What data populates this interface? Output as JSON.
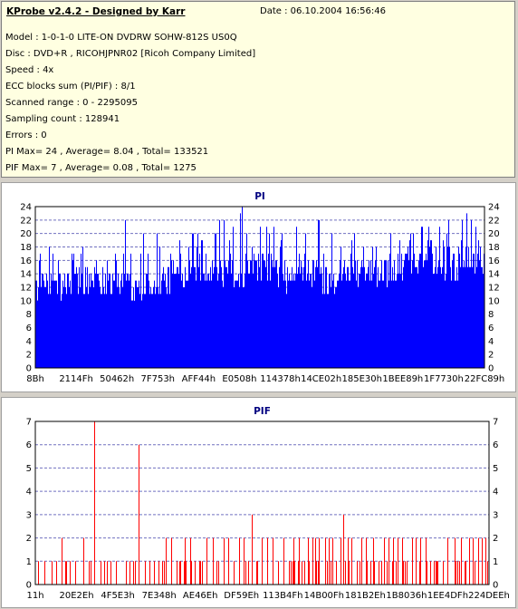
{
  "info": {
    "title": "KProbe v2.4.2 - Designed by Karr",
    "date": "Date : 06.10.2004 16:56:46",
    "lines": [
      "Model : 1-0-1-0 LITE-ON DVDRW SOHW-812S  US0Q",
      "Disc : DVD+R , RICOHJPNR02 [Ricoh Company Limited]",
      "Speed : 4x",
      "ECC blocks sum (PI/PIF) : 8/1",
      "Scanned range : 0 - 2295095",
      "Sampling count : 128941",
      "Errors : 0",
      "PI Max= 24 , Average= 8.04 , Total= 133521",
      "PIF Max= 7 , Average= 0.08 , Total= 1275"
    ]
  },
  "chart_data": [
    {
      "type": "bar",
      "title": "PI",
      "color": "#0000ff",
      "ylim": [
        0,
        24
      ],
      "yticks": [
        0,
        2,
        4,
        6,
        8,
        10,
        12,
        14,
        16,
        18,
        20,
        22,
        24
      ],
      "xticks": [
        "8Bh",
        "2114Fh",
        "50462h",
        "7F753h",
        "AFF44h",
        "E0508h",
        "114378h",
        "14CE02h",
        "185E30h",
        "1BEE89h",
        "1F7730h",
        "22FC89h"
      ],
      "max": 24,
      "average": 8.04,
      "grid": true,
      "baseline": [
        11,
        11,
        11,
        11,
        11,
        12,
        12,
        12,
        12,
        12,
        12,
        11,
        11,
        11,
        11,
        11,
        12,
        12,
        13,
        13,
        14,
        14,
        14,
        14,
        13,
        13,
        13,
        13,
        14,
        14,
        14,
        14,
        13,
        12,
        12,
        13,
        13,
        13,
        12,
        12,
        13,
        13,
        13,
        13,
        13,
        13,
        13,
        14,
        14,
        15,
        15,
        15,
        15,
        15,
        14,
        14,
        14,
        14,
        14,
        14
      ],
      "peaks": [
        [
          0.05,
          16
        ],
        [
          0.1,
          17
        ],
        [
          0.16,
          16
        ],
        [
          0.25,
          17
        ],
        [
          0.3,
          17
        ],
        [
          0.34,
          18
        ],
        [
          0.37,
          19
        ],
        [
          0.4,
          20
        ],
        [
          0.41,
          22
        ],
        [
          0.42,
          22
        ],
        [
          0.44,
          21
        ],
        [
          0.455,
          23
        ],
        [
          0.46,
          24
        ],
        [
          0.47,
          20
        ],
        [
          0.5,
          21
        ],
        [
          0.52,
          20
        ],
        [
          0.53,
          21
        ],
        [
          0.58,
          21
        ],
        [
          0.6,
          20
        ],
        [
          0.63,
          22
        ],
        [
          0.66,
          20
        ],
        [
          0.68,
          18
        ],
        [
          0.71,
          20
        ],
        [
          0.75,
          18
        ],
        [
          0.79,
          20
        ],
        [
          0.81,
          19
        ],
        [
          0.84,
          20
        ],
        [
          0.86,
          21
        ],
        [
          0.88,
          19
        ],
        [
          0.9,
          21
        ],
        [
          0.92,
          22
        ],
        [
          0.95,
          22
        ],
        [
          0.96,
          23
        ],
        [
          0.97,
          22
        ],
        [
          0.98,
          21
        ],
        [
          0.99,
          18
        ],
        [
          0.2,
          22
        ],
        [
          0.24,
          20
        ],
        [
          0.27,
          20
        ],
        [
          0.35,
          20
        ]
      ]
    },
    {
      "type": "bar",
      "title": "PIF",
      "color": "#ff0000",
      "ylim": [
        0,
        7
      ],
      "yticks": [
        0,
        1,
        2,
        3,
        4,
        5,
        6,
        7
      ],
      "xticks": [
        "11h",
        "20E2Eh",
        "4F5E3h",
        "7E348h",
        "AE46Eh",
        "DF59Eh",
        "113B4Fh",
        "14B00Fh",
        "181B2Eh",
        "1B8036h",
        "1EE4DFh",
        "224DEEh"
      ],
      "max": 7,
      "average": 0.08,
      "grid": true,
      "spikes": [
        [
          0.005,
          1
        ],
        [
          0.02,
          1
        ],
        [
          0.045,
          1
        ],
        [
          0.058,
          2
        ],
        [
          0.065,
          1
        ],
        [
          0.075,
          1
        ],
        [
          0.088,
          1
        ],
        [
          0.105,
          2
        ],
        [
          0.118,
          1
        ],
        [
          0.122,
          1
        ],
        [
          0.13,
          7
        ],
        [
          0.158,
          1
        ],
        [
          0.165,
          1
        ],
        [
          0.178,
          1
        ],
        [
          0.2,
          1
        ],
        [
          0.215,
          1
        ],
        [
          0.228,
          6
        ],
        [
          0.242,
          1
        ],
        [
          0.262,
          1
        ],
        [
          0.288,
          2
        ],
        [
          0.3,
          2
        ],
        [
          0.318,
          1
        ],
        [
          0.33,
          2
        ],
        [
          0.342,
          2
        ],
        [
          0.352,
          1
        ],
        [
          0.362,
          1
        ],
        [
          0.378,
          2
        ],
        [
          0.392,
          2
        ],
        [
          0.404,
          1
        ],
        [
          0.415,
          2
        ],
        [
          0.425,
          2
        ],
        [
          0.438,
          1
        ],
        [
          0.45,
          2
        ],
        [
          0.46,
          2
        ],
        [
          0.47,
          1
        ],
        [
          0.478,
          3
        ],
        [
          0.49,
          1
        ],
        [
          0.5,
          2
        ],
        [
          0.512,
          2
        ],
        [
          0.524,
          2
        ],
        [
          0.535,
          1
        ],
        [
          0.548,
          2
        ],
        [
          0.56,
          1
        ],
        [
          0.57,
          2
        ],
        [
          0.582,
          2
        ],
        [
          0.594,
          1
        ],
        [
          0.602,
          2
        ],
        [
          0.612,
          2
        ],
        [
          0.618,
          2
        ],
        [
          0.625,
          2
        ],
        [
          0.64,
          2
        ],
        [
          0.648,
          2
        ],
        [
          0.656,
          2
        ],
        [
          0.664,
          1
        ],
        [
          0.674,
          2
        ],
        [
          0.68,
          3
        ],
        [
          0.69,
          2
        ],
        [
          0.698,
          2
        ],
        [
          0.71,
          1
        ],
        [
          0.72,
          2
        ],
        [
          0.73,
          2
        ],
        [
          0.745,
          2
        ],
        [
          0.758,
          1
        ],
        [
          0.77,
          2
        ],
        [
          0.78,
          2
        ],
        [
          0.79,
          2
        ],
        [
          0.8,
          2
        ],
        [
          0.81,
          2
        ],
        [
          0.82,
          1
        ],
        [
          0.832,
          2
        ],
        [
          0.84,
          2
        ],
        [
          0.85,
          2
        ],
        [
          0.862,
          2
        ],
        [
          0.872,
          1
        ],
        [
          0.885,
          1
        ],
        [
          0.9,
          1
        ],
        [
          0.91,
          2
        ],
        [
          0.925,
          2
        ],
        [
          0.932,
          1
        ],
        [
          0.94,
          2
        ],
        [
          0.95,
          1
        ],
        [
          0.958,
          2
        ],
        [
          0.965,
          2
        ],
        [
          0.97,
          1
        ],
        [
          0.978,
          2
        ],
        [
          0.985,
          2
        ],
        [
          0.993,
          2
        ],
        [
          0.998,
          1
        ]
      ],
      "ones_density": 0.22
    }
  ]
}
